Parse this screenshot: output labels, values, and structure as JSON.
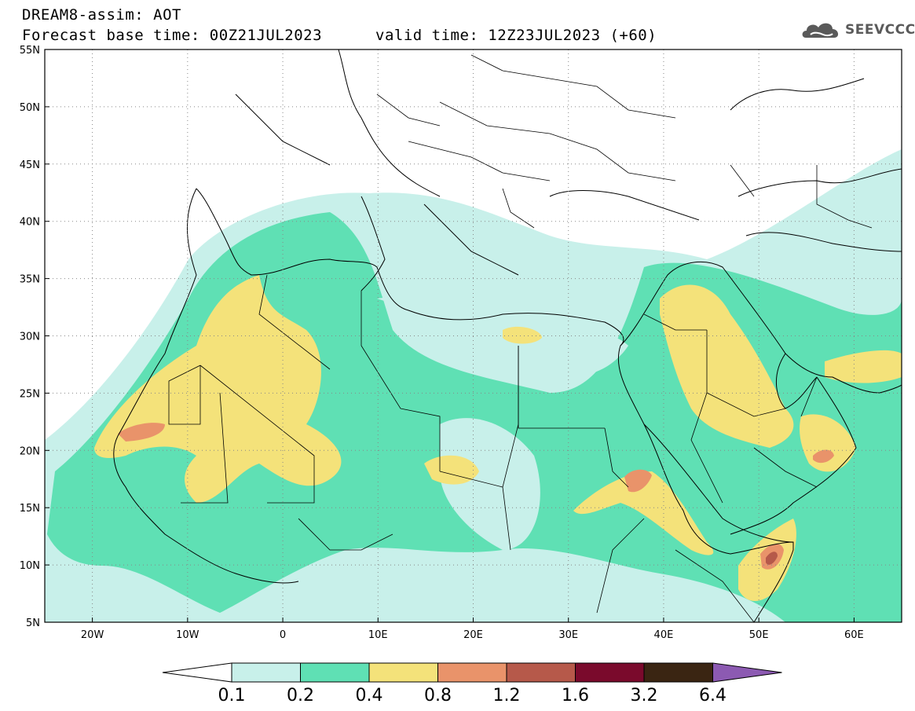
{
  "header": {
    "line1": "DREAM8-assim: AOT",
    "line2": "Forecast base time: 00Z21JUL2023",
    "valid": "valid time: 12Z23JUL2023 (+60)",
    "logo_text": "SEEVCCC"
  },
  "map": {
    "lon_range": [
      -25,
      65
    ],
    "lat_range": [
      5,
      55
    ],
    "lat_labels": [
      "5N",
      "10N",
      "15N",
      "20N",
      "25N",
      "30N",
      "35N",
      "40N",
      "45N",
      "50N",
      "55N"
    ],
    "lon_labels": [
      "20W",
      "10W",
      "0",
      "10E",
      "20E",
      "30E",
      "40E",
      "50E",
      "60E"
    ],
    "lon_tick_values": [
      -20,
      -10,
      0,
      10,
      20,
      30,
      40,
      50,
      60
    ],
    "lat_tick_values": [
      5,
      10,
      15,
      20,
      25,
      30,
      35,
      40,
      45,
      50,
      55
    ]
  },
  "colorbar": {
    "levels": [
      "0.1",
      "0.2",
      "0.4",
      "0.8",
      "1.2",
      "1.6",
      "3.2",
      "6.4"
    ],
    "colors": [
      "#c8f0ea",
      "#5fe0b4",
      "#f4e27a",
      "#e9936a",
      "#b6594a",
      "#7a0a2c",
      "#3a2512",
      "#8c5ab2"
    ],
    "under_color": "#ffffff"
  }
}
